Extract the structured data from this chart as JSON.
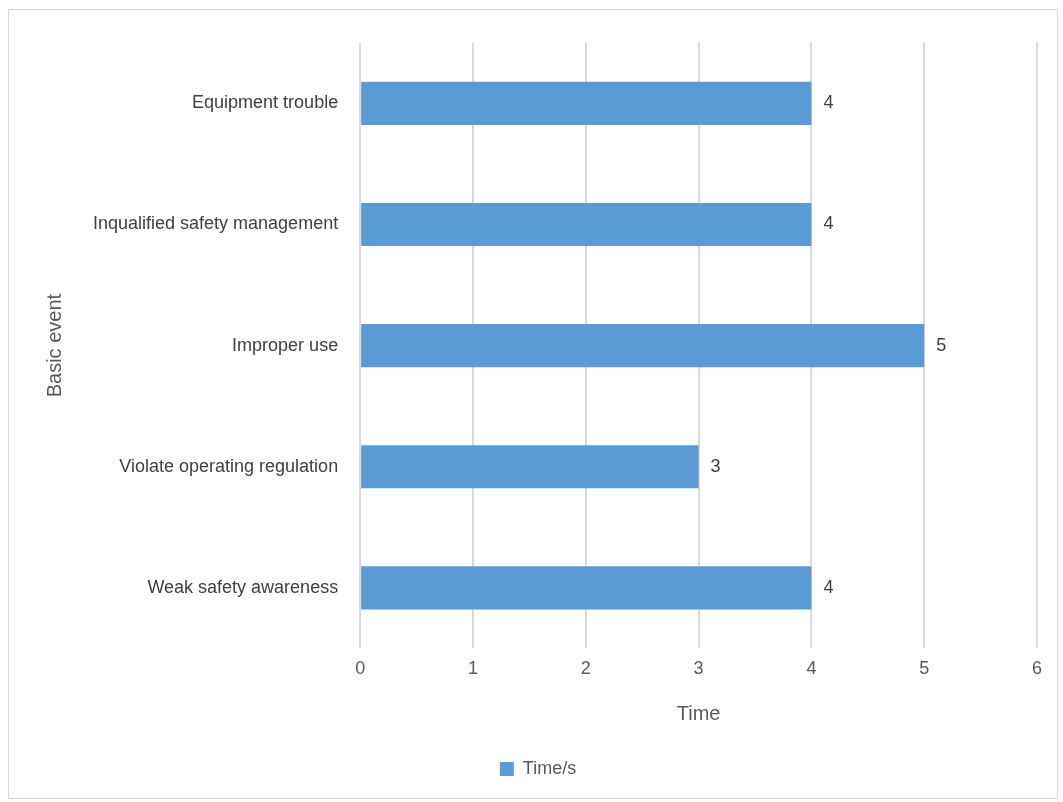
{
  "chart_data": {
    "type": "bar",
    "orientation": "horizontal",
    "xlabel": "Time",
    "ylabel": "Basic event",
    "categories": [
      "Equipment trouble",
      "Inqualified safety management",
      "Improper use",
      "Violate operating regulation",
      "Weak safety awareness"
    ],
    "series": [
      {
        "name": "Time/s",
        "color": "#5b9bd5",
        "values": [
          4,
          4,
          5,
          3,
          4
        ]
      }
    ],
    "xlim": [
      0,
      6
    ],
    "xticks": [
      0,
      1,
      2,
      3,
      4,
      5,
      6
    ],
    "grid": "x",
    "legend": "bottom",
    "data_labels": true
  }
}
